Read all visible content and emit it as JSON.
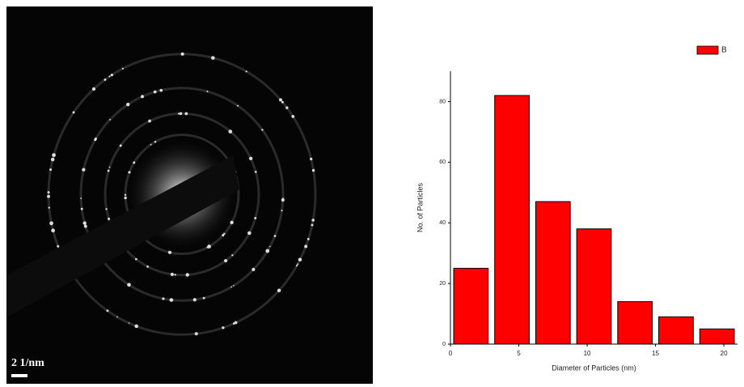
{
  "image": {
    "scale_label": "2 1/nm"
  },
  "chart_data": {
    "type": "histogram",
    "x_label": "Diameter of Particles (nm)",
    "y_label": "No. of Particles",
    "bins": [
      0,
      3,
      6,
      9,
      12,
      15,
      18,
      21
    ],
    "series": [
      {
        "name": "B",
        "color": "#ff0000",
        "values": [
          25,
          82,
          47,
          38,
          14,
          9,
          5
        ]
      }
    ],
    "xlim": [
      0,
      21
    ],
    "xticks": [
      0,
      5,
      10,
      15,
      20
    ],
    "ylim": [
      0,
      90
    ],
    "yticks": [
      0,
      20,
      40,
      60,
      80
    ],
    "legend": "top-right"
  }
}
